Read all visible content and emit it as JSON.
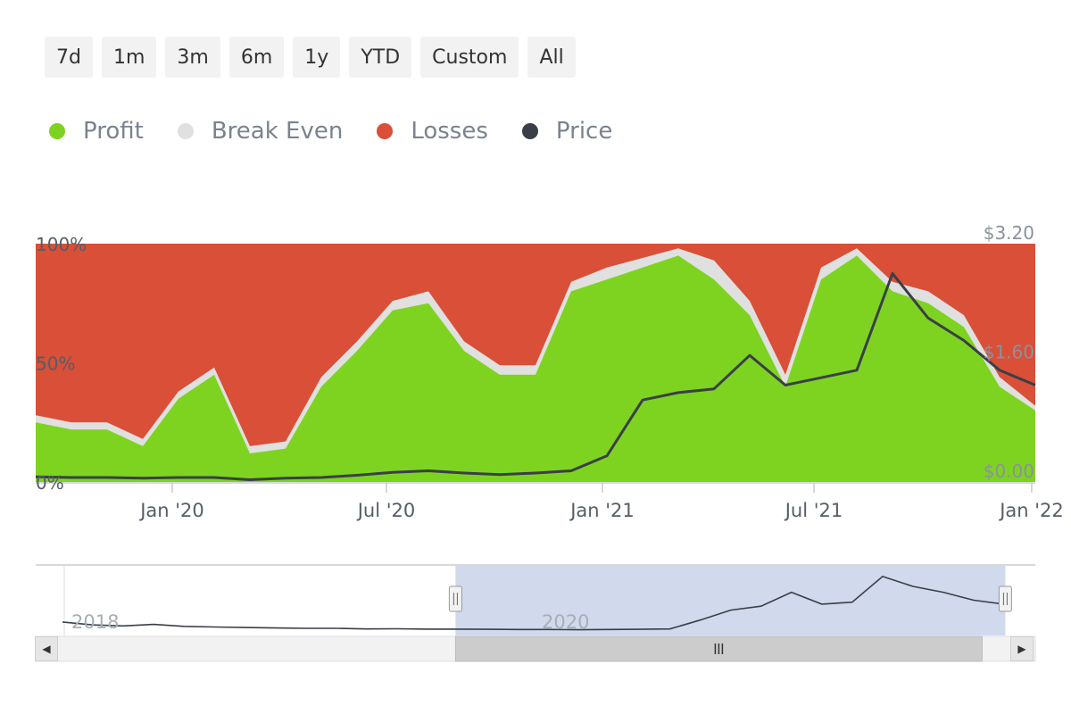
{
  "range_selector": {
    "buttons": [
      {
        "label": "7d"
      },
      {
        "label": "1m"
      },
      {
        "label": "3m"
      },
      {
        "label": "6m"
      },
      {
        "label": "1y"
      },
      {
        "label": "YTD"
      },
      {
        "label": "Custom"
      },
      {
        "label": "All"
      }
    ]
  },
  "legend": [
    {
      "label": "Profit",
      "color": "#7ed321"
    },
    {
      "label": "Break Even",
      "color": "#e0e0e0"
    },
    {
      "label": "Losses",
      "color": "#d94f38"
    },
    {
      "label": "Price",
      "color": "#3a3f47"
    }
  ],
  "chart_data": {
    "type": "area",
    "title": "",
    "x_ticks": [
      "Jan '20",
      "Jul '20",
      "Jan '21",
      "Jul '21",
      "Jan '22"
    ],
    "left_axis": {
      "ticks": [
        "0%",
        "50%",
        "100%"
      ],
      "range": [
        0,
        100
      ]
    },
    "right_axis": {
      "ticks": [
        "$0.00",
        "$1.60",
        "$3.20"
      ],
      "range": [
        0,
        3.2
      ]
    },
    "x": [
      "2019-09",
      "2019-10",
      "2019-11",
      "2019-12",
      "2020-01",
      "2020-02",
      "2020-03",
      "2020-04",
      "2020-05",
      "2020-06",
      "2020-07",
      "2020-08",
      "2020-09",
      "2020-10",
      "2020-11",
      "2020-12",
      "2021-01",
      "2021-02",
      "2021-03",
      "2021-04",
      "2021-05",
      "2021-06",
      "2021-07",
      "2021-08",
      "2021-09",
      "2021-10",
      "2021-11",
      "2021-12",
      "2022-01"
    ],
    "series": [
      {
        "name": "Profit",
        "stack": "percent",
        "color": "#7ed321",
        "values": [
          25,
          22,
          22,
          15,
          35,
          45,
          12,
          14,
          40,
          55,
          72,
          75,
          55,
          45,
          45,
          80,
          85,
          90,
          95,
          85,
          70,
          40,
          85,
          95,
          80,
          75,
          65,
          40,
          30
        ]
      },
      {
        "name": "Break Even",
        "stack": "percent",
        "color": "#e0e0e0",
        "values": [
          3,
          3,
          3,
          3,
          3,
          3,
          3,
          3,
          4,
          4,
          4,
          5,
          4,
          4,
          4,
          4,
          5,
          4,
          3,
          8,
          6,
          5,
          5,
          3,
          4,
          5,
          5,
          4,
          2
        ]
      },
      {
        "name": "Losses",
        "stack": "percent",
        "color": "#d94f38",
        "values": [
          72,
          75,
          75,
          82,
          62,
          52,
          85,
          83,
          56,
          41,
          24,
          20,
          41,
          51,
          51,
          16,
          10,
          6,
          2,
          7,
          24,
          55,
          10,
          2,
          16,
          20,
          30,
          56,
          68
        ]
      },
      {
        "name": "Price",
        "axis": "right",
        "color": "#3a3f47",
        "values": [
          0.07,
          0.06,
          0.06,
          0.05,
          0.06,
          0.06,
          0.03,
          0.05,
          0.06,
          0.09,
          0.13,
          0.15,
          0.12,
          0.1,
          0.12,
          0.15,
          0.35,
          1.1,
          1.2,
          1.25,
          1.7,
          1.3,
          1.4,
          1.5,
          2.8,
          2.2,
          1.9,
          1.5,
          1.3
        ]
      }
    ]
  },
  "navigator": {
    "labels": [
      "2018",
      "2020"
    ],
    "price_values": [
      0.5,
      0.35,
      0.3,
      0.38,
      0.28,
      0.25,
      0.22,
      0.2,
      0.18,
      0.18,
      0.15,
      0.16,
      0.14,
      0.14,
      0.13,
      0.12,
      0.12,
      0.11,
      0.12,
      0.13,
      0.15,
      0.6,
      1.1,
      1.3,
      2.0,
      1.4,
      1.5,
      2.8,
      2.3,
      2.0,
      1.6,
      1.4
    ],
    "selection": [
      0.42,
      0.97
    ]
  }
}
